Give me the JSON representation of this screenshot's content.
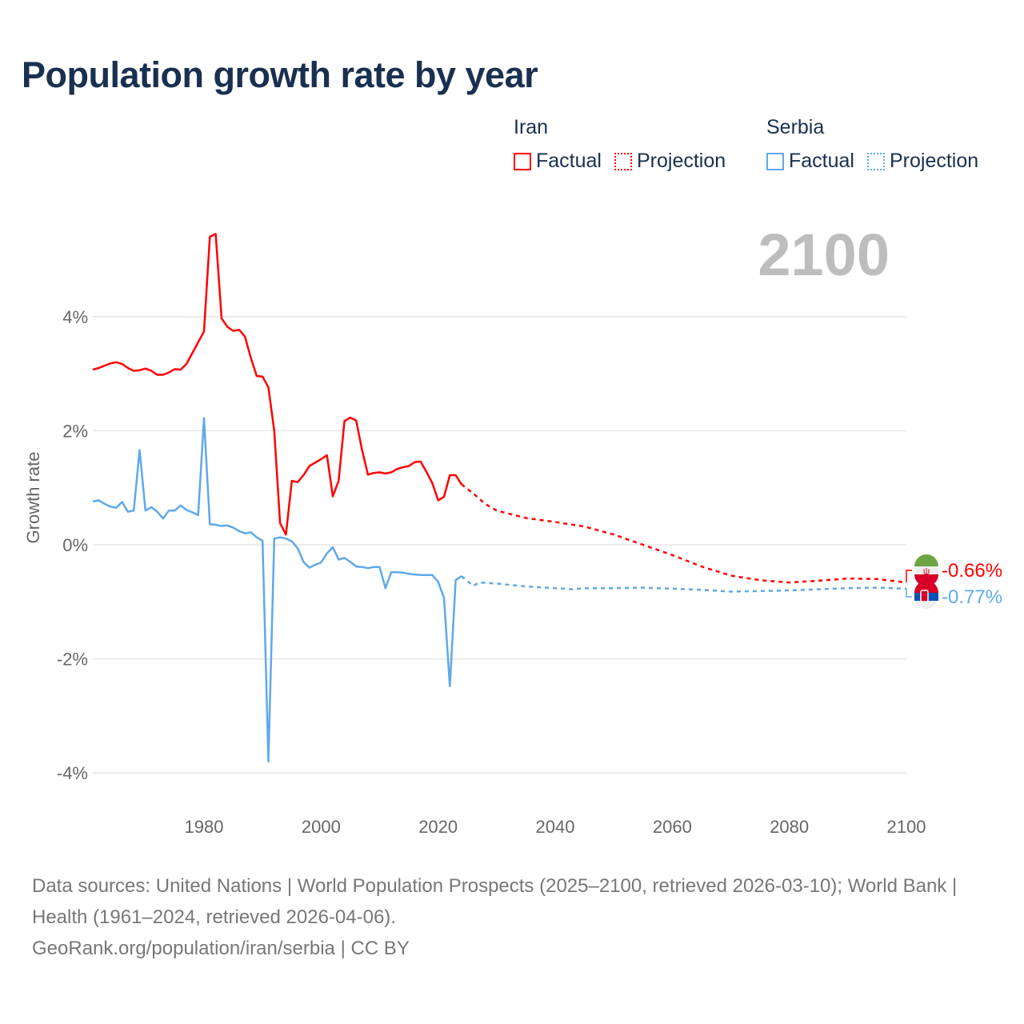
{
  "title": "Population growth rate by year",
  "current_year": "2100",
  "legend": [
    {
      "name": "Iran",
      "color": "#ff0000",
      "factual": "Factual",
      "projection": "Projection"
    },
    {
      "name": "Serbia",
      "color": "#5fa8ea",
      "factual": "Factual",
      "projection": "Projection"
    }
  ],
  "footer": {
    "sources": "Data sources: United Nations | World Population Prospects (2025–2100, retrieved 2026-03-10); World Bank | Health (1961–2024, retrieved 2026-04-06).",
    "credit": "GeoRank.org/population/iran/serbia | CC BY"
  },
  "chart_data": {
    "type": "line",
    "title": "Population growth rate by year",
    "xlabel": "",
    "ylabel": "Growth rate",
    "xlim": [
      1961,
      2100
    ],
    "ylim": [
      -4.3,
      5.6
    ],
    "x_ticks": [
      1980,
      2000,
      2020,
      2040,
      2060,
      2080,
      2100
    ],
    "y_ticks": [
      {
        "v": 4,
        "label": "4%"
      },
      {
        "v": 2,
        "label": "2%"
      },
      {
        "v": 0,
        "label": "0%"
      },
      {
        "v": -2,
        "label": "-2%"
      },
      {
        "v": -4,
        "label": "-4%"
      }
    ],
    "grid": true,
    "series": [
      {
        "name": "Iran",
        "color": "#ff0000",
        "end_label": "-0.66%",
        "flag": "iran-flag",
        "factual": {
          "x": [
            1961,
            1962,
            1963,
            1964,
            1965,
            1966,
            1967,
            1968,
            1969,
            1970,
            1971,
            1972,
            1973,
            1974,
            1975,
            1976,
            1977,
            1978,
            1979,
            1980,
            1981,
            1982,
            1983,
            1984,
            1985,
            1986,
            1987,
            1988,
            1989,
            1990,
            1991,
            1992,
            1993,
            1994,
            1995,
            1996,
            1997,
            1998,
            1999,
            2000,
            2001,
            2002,
            2003,
            2004,
            2005,
            2006,
            2007,
            2008,
            2009,
            2010,
            2011,
            2012,
            2013,
            2014,
            2015,
            2016,
            2017,
            2018,
            2019,
            2020,
            2021,
            2022,
            2023,
            2024
          ],
          "y": [
            3.07,
            3.1,
            3.14,
            3.18,
            3.2,
            3.17,
            3.1,
            3.05,
            3.06,
            3.09,
            3.05,
            2.98,
            2.98,
            3.02,
            3.08,
            3.07,
            3.17,
            3.36,
            3.55,
            3.74,
            5.4,
            5.45,
            3.97,
            3.82,
            3.75,
            3.77,
            3.65,
            3.28,
            2.96,
            2.95,
            2.76,
            2.0,
            0.38,
            0.18,
            1.12,
            1.1,
            1.22,
            1.38,
            1.44,
            1.5,
            1.57,
            0.85,
            1.12,
            2.17,
            2.23,
            2.18,
            1.66,
            1.23,
            1.26,
            1.27,
            1.25,
            1.27,
            1.33,
            1.36,
            1.38,
            1.45,
            1.46,
            1.28,
            1.08,
            0.78,
            0.84,
            1.22,
            1.22,
            1.06
          ]
        },
        "projection": {
          "x": [
            2024,
            2026,
            2028,
            2030,
            2035,
            2040,
            2045,
            2050,
            2055,
            2060,
            2065,
            2070,
            2075,
            2080,
            2085,
            2090,
            2095,
            2100
          ],
          "y": [
            1.06,
            0.9,
            0.72,
            0.6,
            0.47,
            0.4,
            0.32,
            0.18,
            0.0,
            -0.18,
            -0.38,
            -0.54,
            -0.62,
            -0.66,
            -0.63,
            -0.59,
            -0.6,
            -0.66
          ]
        }
      },
      {
        "name": "Serbia",
        "color": "#5fa8ea",
        "end_label": "-0.77%",
        "flag": "serbia-flag",
        "factual": {
          "x": [
            1961,
            1962,
            1963,
            1964,
            1965,
            1966,
            1967,
            1968,
            1969,
            1970,
            1971,
            1972,
            1973,
            1974,
            1975,
            1976,
            1977,
            1978,
            1979,
            1980,
            1981,
            1982,
            1983,
            1984,
            1985,
            1986,
            1987,
            1988,
            1989,
            1990,
            1991,
            1992,
            1993,
            1994,
            1995,
            1996,
            1997,
            1998,
            1999,
            2000,
            2001,
            2002,
            2003,
            2004,
            2005,
            2006,
            2007,
            2008,
            2009,
            2010,
            2011,
            2012,
            2013,
            2014,
            2015,
            2016,
            2017,
            2018,
            2019,
            2020,
            2021,
            2022,
            2023,
            2024
          ],
          "y": [
            0.76,
            0.78,
            0.72,
            0.67,
            0.65,
            0.75,
            0.58,
            0.6,
            1.66,
            0.6,
            0.66,
            0.58,
            0.46,
            0.6,
            0.6,
            0.69,
            0.61,
            0.57,
            0.52,
            2.22,
            0.36,
            0.35,
            0.33,
            0.34,
            0.3,
            0.24,
            0.2,
            0.22,
            0.13,
            0.07,
            -3.8,
            0.11,
            0.13,
            0.11,
            0.06,
            -0.06,
            -0.3,
            -0.4,
            -0.35,
            -0.31,
            -0.15,
            -0.04,
            -0.26,
            -0.23,
            -0.3,
            -0.38,
            -0.39,
            -0.41,
            -0.39,
            -0.39,
            -0.76,
            -0.48,
            -0.48,
            -0.49,
            -0.51,
            -0.52,
            -0.53,
            -0.53,
            -0.53,
            -0.65,
            -0.93,
            -2.48,
            -0.62,
            -0.55
          ]
        },
        "projection": {
          "x": [
            2024,
            2026,
            2027,
            2030,
            2035,
            2040,
            2043,
            2045,
            2050,
            2055,
            2060,
            2065,
            2070,
            2075,
            2080,
            2085,
            2090,
            2095,
            2100
          ],
          "y": [
            -0.55,
            -0.72,
            -0.66,
            -0.68,
            -0.73,
            -0.76,
            -0.78,
            -0.76,
            -0.76,
            -0.75,
            -0.77,
            -0.79,
            -0.82,
            -0.81,
            -0.8,
            -0.78,
            -0.76,
            -0.75,
            -0.77
          ]
        }
      }
    ]
  }
}
